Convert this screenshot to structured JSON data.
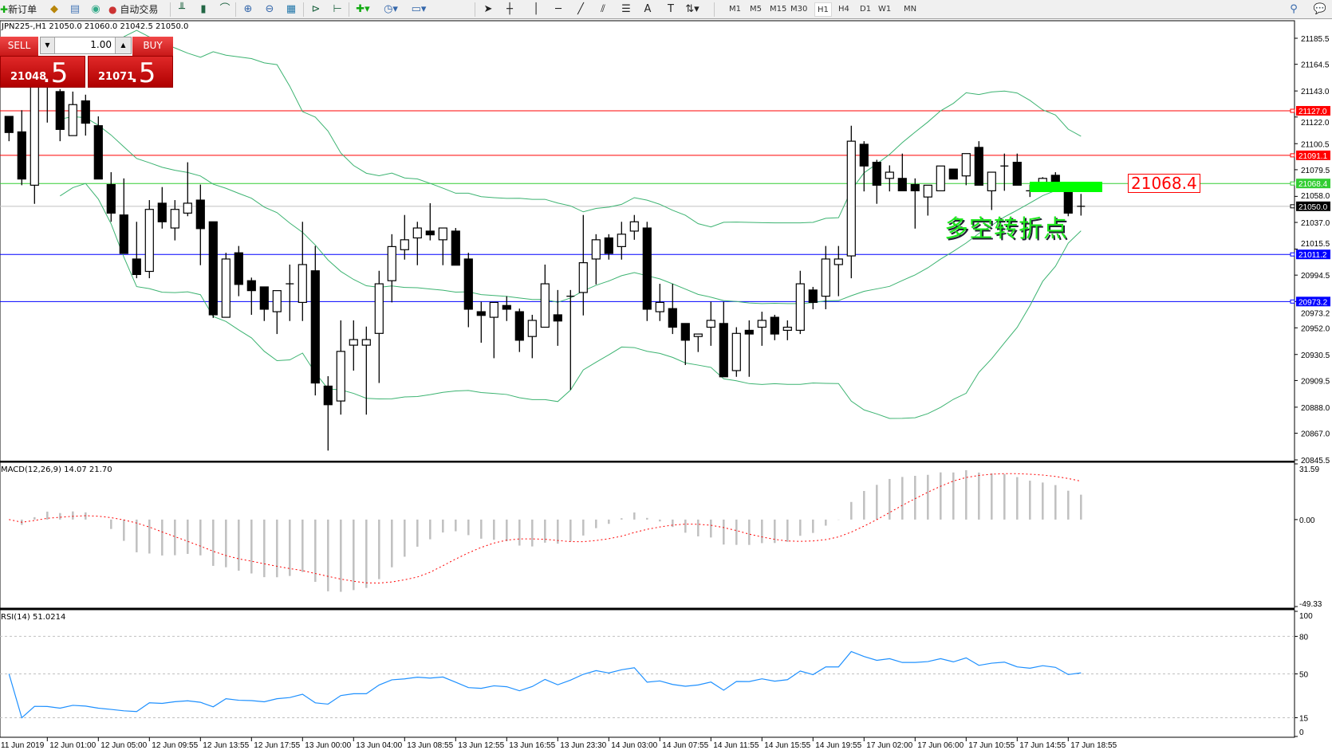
{
  "toolbar": {
    "new_order": "新订单",
    "auto_trading": "自动交易",
    "timeframes": [
      "M1",
      "M5",
      "M15",
      "M30",
      "H1",
      "H4",
      "D1",
      "W1",
      "MN"
    ],
    "active_timeframe": "H1",
    "icons": [
      "new-order-icon",
      "navigator-icon",
      "data-window-icon",
      "signals-icon",
      "auto-trading-icon",
      "bar-chart-icon",
      "candlestick-icon",
      "line-chart-icon",
      "zoom-in-icon",
      "zoom-out-icon",
      "tile-windows-icon",
      "autoscroll-icon",
      "chart-shift-icon",
      "indicators-icon",
      "periods-icon",
      "templates-icon",
      "cursor-icon",
      "crosshair-icon",
      "vertical-line-icon",
      "horizontal-line-icon",
      "trendline-icon",
      "equidistant-channel-icon",
      "fibonacci-icon",
      "text-icon",
      "text-label-icon",
      "arrows-icon",
      "search-icon",
      "chat-icon"
    ]
  },
  "chart": {
    "header": "JPN225-,H1  21050.0 21060.0 21042.5 21050.0",
    "trade_panel": {
      "sell": "SELL",
      "buy": "BUY",
      "lot": "1.00",
      "bid_main": "21048",
      "bid_pip": ".5",
      "ask_main": "21071",
      "ask_pip": ".5"
    },
    "annotation": "多空转折点",
    "annotation_price_label": "21068.4",
    "colors": {
      "bull": "#ffffff",
      "bear": "#000000",
      "bands": "#3cb371",
      "macd_hist": "#c0c0c0",
      "macd_signal": "#ff0000",
      "rsi": "#1e90ff"
    }
  },
  "chart_data": [
    {
      "type": "candlestick",
      "symbol": "JPN225-",
      "timeframe": "H1",
      "ohlc_order": [
        "open",
        "high",
        "low",
        "close"
      ],
      "candles": [
        [
          21122.5,
          21122.5,
          21102.5,
          21109.5
        ],
        [
          21110,
          21127.5,
          21067,
          21072
        ],
        [
          21067,
          21162,
          21052,
          21155.5
        ],
        [
          21162,
          21168.5,
          21117.5,
          21152.5
        ],
        [
          21142.5,
          21144.5,
          21102.5,
          21112
        ],
        [
          21107,
          21142.5,
          21107,
          21132
        ],
        [
          21135,
          21140,
          21107,
          21117
        ],
        [
          21115,
          21122.5,
          21072,
          21072
        ],
        [
          21067.5,
          21077.5,
          21037.5,
          21044.5
        ],
        [
          21043,
          21072.5,
          21012,
          21012
        ],
        [
          21007.5,
          21037.5,
          20992,
          20995
        ],
        [
          20997.5,
          21055,
          20992,
          21047.5
        ],
        [
          21052.5,
          21065.5,
          21032,
          21037.5
        ],
        [
          21032.5,
          21055,
          21022.5,
          21047.5
        ],
        [
          21044.5,
          21085.5,
          21042,
          21052.5
        ],
        [
          21055,
          21067.5,
          21002.5,
          21032
        ],
        [
          21037.5,
          21037.5,
          20960,
          20962.5
        ],
        [
          20960.5,
          21012.5,
          20960.5,
          21007.5
        ],
        [
          21012.5,
          21018,
          20977.5,
          20987
        ],
        [
          20990,
          20992.5,
          20962.5,
          20982
        ],
        [
          20985,
          20985,
          20957.5,
          20967
        ],
        [
          20965,
          20982,
          20947,
          20982
        ],
        [
          20987.5,
          21003,
          20957.5,
          20987.5
        ],
        [
          20972.5,
          21037.5,
          20957.5,
          21003
        ],
        [
          20998,
          21018,
          20897.5,
          20907.5
        ],
        [
          20905,
          20913,
          20853,
          20890
        ],
        [
          20893,
          20958,
          20882,
          20933
        ],
        [
          20938,
          20958,
          20917.5,
          20942.5
        ],
        [
          20938,
          20953,
          20882,
          20942.5
        ],
        [
          20947.5,
          20998,
          20907.5,
          20987.5
        ],
        [
          20990,
          21027.5,
          20972.5,
          21017.5
        ],
        [
          21015,
          21043,
          21007,
          21023
        ],
        [
          21024.5,
          21037.5,
          21002.5,
          21032.5
        ],
        [
          21030,
          21052.5,
          21022.5,
          21027
        ],
        [
          21023,
          21032.5,
          21002.5,
          21032.5
        ],
        [
          21030,
          21032.5,
          21002.5,
          21002.5
        ],
        [
          21007.5,
          21012.5,
          20952.5,
          20967
        ],
        [
          20965,
          20973,
          20940,
          20962
        ],
        [
          20960.5,
          20972.5,
          20927.5,
          20972.5
        ],
        [
          20970,
          20977.5,
          20957.5,
          20967
        ],
        [
          20965,
          20967.5,
          20932.5,
          20942
        ],
        [
          20945,
          20962.5,
          20927.5,
          20958
        ],
        [
          20952.5,
          21003,
          20952.5,
          20987.5
        ],
        [
          20962.5,
          20982.5,
          20937.5,
          20957.5
        ],
        [
          20977.5,
          20982.5,
          20902,
          20977.5
        ],
        [
          20980.5,
          21043,
          20962,
          21004.5
        ],
        [
          21007.5,
          21027.5,
          20987,
          21023
        ],
        [
          21024.5,
          21027.5,
          21007,
          21012
        ],
        [
          21017.5,
          21037.5,
          21007,
          21027.5
        ],
        [
          21030,
          21043,
          21023,
          21037.5
        ],
        [
          21032.5,
          21037.5,
          20957.5,
          20967
        ],
        [
          20965,
          20987.5,
          20957.5,
          20972.5
        ],
        [
          20967.5,
          20987.5,
          20947,
          20952.5
        ],
        [
          20955.5,
          20955.5,
          20922,
          20942
        ],
        [
          20945,
          20947,
          20932.5,
          20947
        ],
        [
          20952.5,
          20973,
          20937.5,
          20958
        ],
        [
          20955.5,
          20973,
          20912.5,
          20912.5
        ],
        [
          20917.5,
          20952.5,
          20912.5,
          20947.5
        ],
        [
          20950,
          20958,
          20912.5,
          20947
        ],
        [
          20952.5,
          20965,
          20937.5,
          20958
        ],
        [
          20960.5,
          20962.5,
          20942,
          20947
        ],
        [
          20950,
          20958,
          20942,
          20952.5
        ],
        [
          20950,
          20998,
          20947,
          20987.5
        ],
        [
          20982.5,
          20985,
          20967,
          20972.5
        ],
        [
          20977.5,
          21018,
          20967,
          21007.5
        ],
        [
          21003,
          21018,
          20977.5,
          21007.5
        ],
        [
          21010,
          21115,
          20992,
          21102.5
        ],
        [
          21100,
          21102.5,
          21062,
          21082.5
        ],
        [
          21085.5,
          21087.5,
          21052,
          21067
        ],
        [
          21072.5,
          21083,
          21062,
          21077.5
        ],
        [
          21072.5,
          21092.5,
          21062.5,
          21062.5
        ],
        [
          21067.5,
          21072.5,
          21032,
          21062.5
        ],
        [
          21057.5,
          21067,
          21042.5,
          21067
        ],
        [
          21062.5,
          21082.5,
          21062.5,
          21082.5
        ],
        [
          21080,
          21080,
          21072,
          21072
        ],
        [
          21074.5,
          21092.5,
          21067,
          21092.5
        ],
        [
          21097.5,
          21102.5,
          21067,
          21067
        ],
        [
          21062.5,
          21077.5,
          21047,
          21077.5
        ],
        [
          21082.5,
          21092.5,
          21062.5,
          21082.5
        ],
        [
          21085.5,
          21092.5,
          21067,
          21067
        ],
        [
          21062.5,
          21067.5,
          21057.5,
          21062.5
        ],
        [
          21066.5,
          21073.5,
          21065.5,
          21072.5
        ],
        [
          21075,
          21077.5,
          21062.5,
          21067.5
        ],
        [
          21066.5,
          21068.5,
          21042,
          21044.5
        ],
        [
          21050,
          21060,
          21042.5,
          21050
        ]
      ],
      "overlay": "Bollinger Bands",
      "ylim": [
        20845.5,
        21185.5
      ],
      "y_ticks": [
        "21185.5",
        "21164.5",
        "21143.0",
        "21122.0",
        "21100.5",
        "21079.5",
        "21058.0",
        "21037.0",
        "21015.5",
        "20994.5",
        "20973.2",
        "20952.0",
        "20930.5",
        "20909.5",
        "20888.0",
        "20867.0",
        "20845.5"
      ],
      "horizontal_lines": [
        {
          "value": "21127.0",
          "color": "#ff0000"
        },
        {
          "value": "21091.1",
          "color": "#ff0000"
        },
        {
          "value": "21068.4",
          "color": "#32cd32"
        },
        {
          "value": "21050.0",
          "color": "#000000",
          "line": "#c0c0c0"
        },
        {
          "value": "21011.2",
          "color": "#0000ff"
        },
        {
          "value": "20973.2",
          "color": "#0000ff"
        }
      ],
      "x_ticks": [
        "11 Jun 2019",
        "12 Jun 01:00",
        "12 Jun 05:00",
        "12 Jun 09:55",
        "12 Jun 13:55",
        "12 Jun 17:55",
        "13 Jun 00:00",
        "13 Jun 04:00",
        "13 Jun 08:55",
        "13 Jun 12:55",
        "13 Jun 16:55",
        "13 Jun 23:30",
        "14 Jun 03:00",
        "14 Jun 07:55",
        "14 Jun 11:55",
        "14 Jun 15:55",
        "14 Jun 19:55",
        "17 Jun 02:00",
        "17 Jun 06:00",
        "17 Jun 10:55",
        "17 Jun 14:55",
        "17 Jun 18:55"
      ]
    },
    {
      "type": "bar+line",
      "title": "MACD(12,26,9) 14.07 21.70",
      "ylim": [
        -49.33,
        31.59
      ],
      "y_ticks": [
        "31.59",
        "0.00",
        "-49.33"
      ]
    },
    {
      "type": "line",
      "title": "RSI(14) 51.0214",
      "ylim": [
        0,
        100
      ],
      "levels": [
        80,
        50,
        15
      ],
      "y_ticks": [
        "100",
        "80",
        "50",
        "15",
        "0"
      ]
    }
  ]
}
